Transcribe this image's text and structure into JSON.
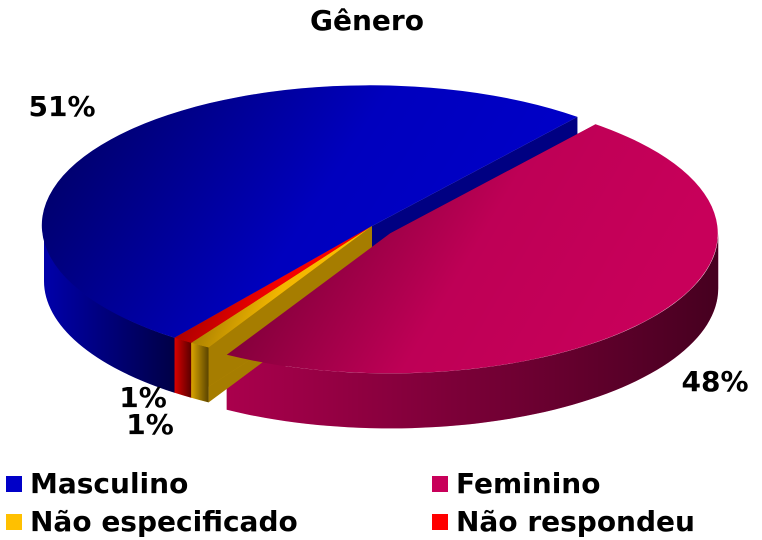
{
  "chart_data": {
    "type": "pie",
    "title": "Gênero",
    "categories": [
      "Masculino",
      "Feminino",
      "Não especificado",
      "Não respondeu"
    ],
    "values": [
      51,
      48,
      1,
      1
    ],
    "value_labels": [
      "51%",
      "48%",
      "1%",
      "1%"
    ],
    "colors": [
      "#0000c8",
      "#c8005a",
      "#ffc000",
      "#ff0000"
    ],
    "legend": "bottom"
  }
}
